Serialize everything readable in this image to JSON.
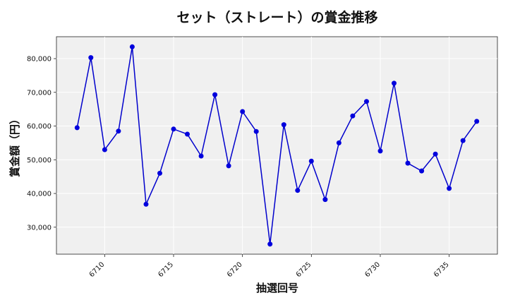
{
  "chart_data": {
    "type": "line",
    "title": "セット（ストレート）の賞金推移",
    "xlabel": "抽選回号",
    "ylabel": "賞金額（円）",
    "xlim": [
      6706.5,
      6738.5
    ],
    "ylim": [
      22000,
      86500
    ],
    "x_ticks": [
      6710,
      6715,
      6720,
      6725,
      6730,
      6735
    ],
    "y_ticks": [
      30000,
      40000,
      50000,
      60000,
      70000,
      80000
    ],
    "y_tick_labels": [
      "30,000",
      "40,000",
      "50,000",
      "60,000",
      "70,000",
      "80,000"
    ],
    "grid": true,
    "colors": {
      "line": "#0000cc",
      "marker": "#0000dd",
      "plot_bg": "#f0f0f0",
      "grid": "#ffffff"
    },
    "series": [
      {
        "x": [
          6708,
          6709,
          6710,
          6711,
          6712,
          6713,
          6714,
          6715,
          6716,
          6717,
          6718,
          6719,
          6720,
          6721,
          6722,
          6723,
          6724,
          6725,
          6726,
          6727,
          6728,
          6729,
          6730,
          6731,
          6732,
          6733,
          6734,
          6735,
          6736,
          6737
        ],
        "values": [
          59500,
          80300,
          53000,
          58500,
          83500,
          36800,
          46000,
          59100,
          57600,
          51100,
          69300,
          48200,
          64300,
          58400,
          25000,
          60400,
          40900,
          49600,
          38200,
          55000,
          63000,
          67300,
          52600,
          72700,
          49000,
          46700,
          51700,
          41500,
          55700,
          61400
        ]
      }
    ]
  }
}
